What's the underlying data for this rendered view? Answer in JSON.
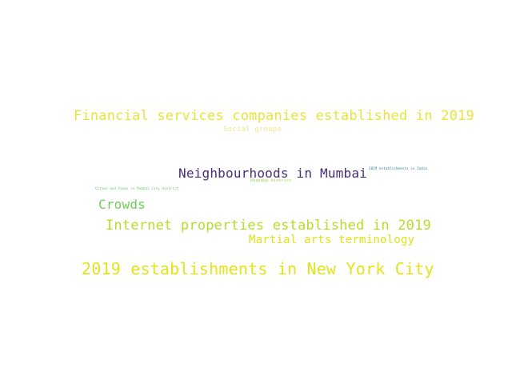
{
  "words": [
    {
      "text": "Financial services companies established in 2019",
      "color": "#e6e53a"
    },
    {
      "text": "Social groups",
      "color": "#f0e68c"
    },
    {
      "text": "Neighbourhoods in Mumbai",
      "color": "#472d7b"
    },
    {
      "text": "2019 establishments in India",
      "color": "#2a788e"
    },
    {
      "text": "Bhandup district",
      "color": "#9bd24a"
    },
    {
      "text": "Cities and towns in Mumbai City district",
      "color": "#5ec962"
    },
    {
      "text": "Crowds",
      "color": "#6ccd5a"
    },
    {
      "text": "Internet properties established in 2019",
      "color": "#b5de2b"
    },
    {
      "text": "Martial arts terminology",
      "color": "#dfe318"
    },
    {
      "text": "2019 establishments in New York City",
      "color": "#e3e418"
    }
  ]
}
